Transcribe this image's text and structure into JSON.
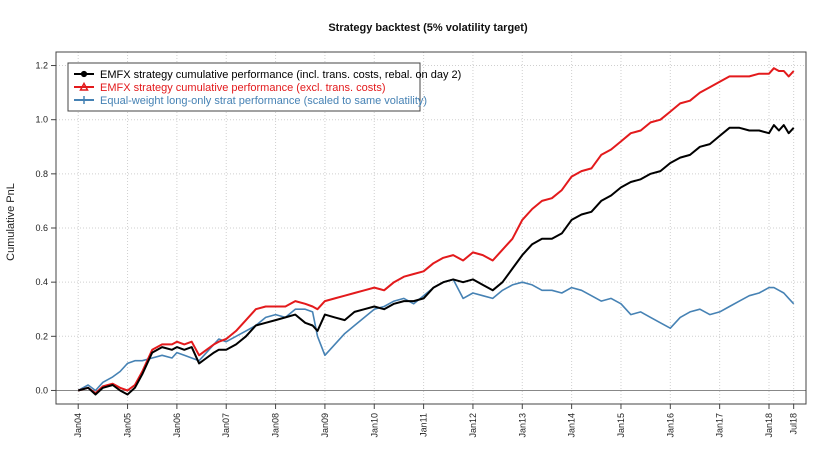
{
  "chart_data": {
    "type": "line",
    "title": "Strategy backtest (5% volatility target)",
    "xlabel": "",
    "ylabel": "Cumulative PnL",
    "x_ticks": [
      "Jan04",
      "Jan05",
      "Jan06",
      "Jan07",
      "Jan08",
      "Jan09",
      "Jan10",
      "Jan11",
      "Jan12",
      "Jan13",
      "Jan14",
      "Jan15",
      "Jan16",
      "Jan17",
      "Jan18",
      "Jul18"
    ],
    "x_tick_years": [
      2004,
      2005,
      2006,
      2007,
      2008,
      2009,
      2010,
      2011,
      2012,
      2013,
      2014,
      2015,
      2016,
      2017,
      2018,
      2018.5
    ],
    "xlim": [
      2003.55,
      2018.75
    ],
    "ylim": [
      -0.05,
      1.25
    ],
    "y_ticks": [
      "0.0",
      "0.2",
      "0.4",
      "0.6",
      "0.8",
      "1.0",
      "1.2"
    ],
    "y_tick_values": [
      0.0,
      0.2,
      0.4,
      0.6,
      0.8,
      1.0,
      1.2
    ],
    "grid": true,
    "legend_position": "top-left",
    "series": [
      {
        "name": "EMFX strategy cumulative performance (incl. trans. costs, rebal. on day 2)",
        "color": "#000000",
        "marker": "circle",
        "x": [
          2004.0,
          2004.2,
          2004.35,
          2004.5,
          2004.7,
          2004.85,
          2005.0,
          2005.15,
          2005.3,
          2005.5,
          2005.7,
          2005.9,
          2006.0,
          2006.15,
          2006.3,
          2006.45,
          2006.6,
          2006.75,
          2006.85,
          2007.0,
          2007.2,
          2007.4,
          2007.6,
          2007.8,
          2008.0,
          2008.2,
          2008.4,
          2008.6,
          2008.75,
          2008.85,
          2009.0,
          2009.2,
          2009.4,
          2009.6,
          2009.8,
          2010.0,
          2010.2,
          2010.4,
          2010.6,
          2010.8,
          2011.0,
          2011.2,
          2011.4,
          2011.6,
          2011.8,
          2012.0,
          2012.2,
          2012.4,
          2012.6,
          2012.8,
          2013.0,
          2013.2,
          2013.4,
          2013.6,
          2013.8,
          2014.0,
          2014.2,
          2014.4,
          2014.6,
          2014.8,
          2015.0,
          2015.2,
          2015.4,
          2015.6,
          2015.8,
          2016.0,
          2016.2,
          2016.4,
          2016.6,
          2016.8,
          2017.0,
          2017.2,
          2017.4,
          2017.6,
          2017.8,
          2018.0,
          2018.1,
          2018.2,
          2018.3,
          2018.4,
          2018.5
        ],
        "y": [
          0.0,
          0.01,
          -0.015,
          0.01,
          0.02,
          0.0,
          -0.015,
          0.01,
          0.06,
          0.14,
          0.16,
          0.15,
          0.16,
          0.15,
          0.16,
          0.1,
          0.12,
          0.14,
          0.15,
          0.15,
          0.17,
          0.2,
          0.24,
          0.25,
          0.26,
          0.27,
          0.28,
          0.25,
          0.24,
          0.22,
          0.28,
          0.27,
          0.26,
          0.29,
          0.3,
          0.31,
          0.3,
          0.32,
          0.33,
          0.33,
          0.34,
          0.38,
          0.4,
          0.41,
          0.4,
          0.41,
          0.39,
          0.37,
          0.4,
          0.45,
          0.5,
          0.54,
          0.56,
          0.56,
          0.58,
          0.63,
          0.65,
          0.66,
          0.7,
          0.72,
          0.75,
          0.77,
          0.78,
          0.8,
          0.81,
          0.84,
          0.86,
          0.87,
          0.9,
          0.91,
          0.94,
          0.97,
          0.97,
          0.96,
          0.96,
          0.95,
          0.98,
          0.96,
          0.98,
          0.95,
          0.97
        ]
      },
      {
        "name": "EMFX strategy cumulative performance (excl. trans. costs)",
        "color": "#e31a1c",
        "marker": "triangle",
        "x": [
          2004.0,
          2004.2,
          2004.35,
          2004.5,
          2004.7,
          2004.85,
          2005.0,
          2005.15,
          2005.3,
          2005.5,
          2005.7,
          2005.9,
          2006.0,
          2006.15,
          2006.3,
          2006.45,
          2006.6,
          2006.75,
          2006.85,
          2007.0,
          2007.2,
          2007.4,
          2007.6,
          2007.8,
          2008.0,
          2008.2,
          2008.4,
          2008.6,
          2008.75,
          2008.85,
          2009.0,
          2009.2,
          2009.4,
          2009.6,
          2009.8,
          2010.0,
          2010.2,
          2010.4,
          2010.6,
          2010.8,
          2011.0,
          2011.2,
          2011.4,
          2011.6,
          2011.8,
          2012.0,
          2012.2,
          2012.4,
          2012.6,
          2012.8,
          2013.0,
          2013.2,
          2013.4,
          2013.6,
          2013.8,
          2014.0,
          2014.2,
          2014.4,
          2014.6,
          2014.8,
          2015.0,
          2015.2,
          2015.4,
          2015.6,
          2015.8,
          2016.0,
          2016.2,
          2016.4,
          2016.6,
          2016.8,
          2017.0,
          2017.2,
          2017.4,
          2017.6,
          2017.8,
          2018.0,
          2018.1,
          2018.2,
          2018.3,
          2018.4,
          2018.5
        ],
        "y": [
          0.0,
          0.01,
          -0.01,
          0.015,
          0.025,
          0.01,
          0.0,
          0.02,
          0.07,
          0.15,
          0.17,
          0.17,
          0.18,
          0.17,
          0.18,
          0.13,
          0.15,
          0.17,
          0.18,
          0.19,
          0.22,
          0.26,
          0.3,
          0.31,
          0.31,
          0.31,
          0.33,
          0.32,
          0.31,
          0.3,
          0.33,
          0.34,
          0.35,
          0.36,
          0.37,
          0.38,
          0.37,
          0.4,
          0.42,
          0.43,
          0.44,
          0.47,
          0.49,
          0.5,
          0.48,
          0.51,
          0.5,
          0.48,
          0.52,
          0.56,
          0.63,
          0.67,
          0.7,
          0.71,
          0.74,
          0.79,
          0.81,
          0.82,
          0.87,
          0.89,
          0.92,
          0.95,
          0.96,
          0.99,
          1.0,
          1.03,
          1.06,
          1.07,
          1.1,
          1.12,
          1.14,
          1.16,
          1.16,
          1.16,
          1.17,
          1.17,
          1.19,
          1.18,
          1.18,
          1.16,
          1.18
        ]
      },
      {
        "name": "Equal-weight long-only strat performance (scaled to same volatility)",
        "color": "#4682b4",
        "marker": "plus",
        "x": [
          2004.0,
          2004.2,
          2004.35,
          2004.5,
          2004.7,
          2004.85,
          2005.0,
          2005.15,
          2005.3,
          2005.5,
          2005.7,
          2005.9,
          2006.0,
          2006.15,
          2006.3,
          2006.45,
          2006.6,
          2006.75,
          2006.85,
          2007.0,
          2007.2,
          2007.4,
          2007.6,
          2007.8,
          2008.0,
          2008.2,
          2008.4,
          2008.6,
          2008.75,
          2008.85,
          2009.0,
          2009.2,
          2009.4,
          2009.6,
          2009.8,
          2010.0,
          2010.2,
          2010.4,
          2010.6,
          2010.8,
          2011.0,
          2011.2,
          2011.4,
          2011.6,
          2011.8,
          2012.0,
          2012.2,
          2012.4,
          2012.6,
          2012.8,
          2013.0,
          2013.2,
          2013.4,
          2013.6,
          2013.8,
          2014.0,
          2014.2,
          2014.4,
          2014.6,
          2014.8,
          2015.0,
          2015.2,
          2015.4,
          2015.6,
          2015.8,
          2016.0,
          2016.2,
          2016.4,
          2016.6,
          2016.8,
          2017.0,
          2017.2,
          2017.4,
          2017.6,
          2017.8,
          2018.0,
          2018.1,
          2018.2,
          2018.3,
          2018.4,
          2018.5
        ],
        "y": [
          0.0,
          0.02,
          0.0,
          0.03,
          0.05,
          0.07,
          0.1,
          0.11,
          0.11,
          0.12,
          0.13,
          0.12,
          0.14,
          0.13,
          0.12,
          0.11,
          0.14,
          0.17,
          0.19,
          0.18,
          0.2,
          0.22,
          0.24,
          0.27,
          0.28,
          0.27,
          0.3,
          0.3,
          0.29,
          0.2,
          0.13,
          0.17,
          0.21,
          0.24,
          0.27,
          0.3,
          0.31,
          0.33,
          0.34,
          0.32,
          0.35,
          0.38,
          0.4,
          0.41,
          0.34,
          0.36,
          0.35,
          0.34,
          0.37,
          0.39,
          0.4,
          0.39,
          0.37,
          0.37,
          0.36,
          0.38,
          0.37,
          0.35,
          0.33,
          0.34,
          0.32,
          0.28,
          0.29,
          0.27,
          0.25,
          0.23,
          0.27,
          0.29,
          0.3,
          0.28,
          0.29,
          0.31,
          0.33,
          0.35,
          0.36,
          0.38,
          0.38,
          0.37,
          0.36,
          0.34,
          0.32
        ]
      }
    ]
  }
}
